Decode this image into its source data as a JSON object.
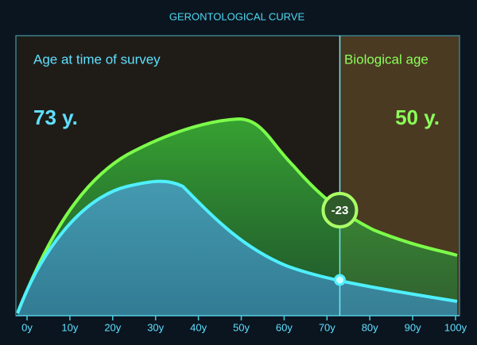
{
  "chart_data": {
    "type": "area",
    "title": "GERONTOLOGICAL CURVE",
    "survey_label": "Age at time of survey",
    "survey_age": 73,
    "survey_age_label": "73 y.",
    "biological_label": "Biological age",
    "biological_age_label": "50 y.",
    "difference": -23,
    "xlim": [
      0,
      100
    ],
    "xticks": [
      {
        "value": 0,
        "label": "0y"
      },
      {
        "value": 10,
        "label": "10y"
      },
      {
        "value": 20,
        "label": "20y"
      },
      {
        "value": 30,
        "label": "30y"
      },
      {
        "value": 40,
        "label": "40y"
      },
      {
        "value": 50,
        "label": "50y"
      },
      {
        "value": 60,
        "label": "60y"
      },
      {
        "value": 70,
        "label": "70y"
      },
      {
        "value": 80,
        "label": "80y"
      },
      {
        "value": 90,
        "label": "90y"
      },
      {
        "value": 100,
        "label": "100y"
      }
    ]
  }
}
